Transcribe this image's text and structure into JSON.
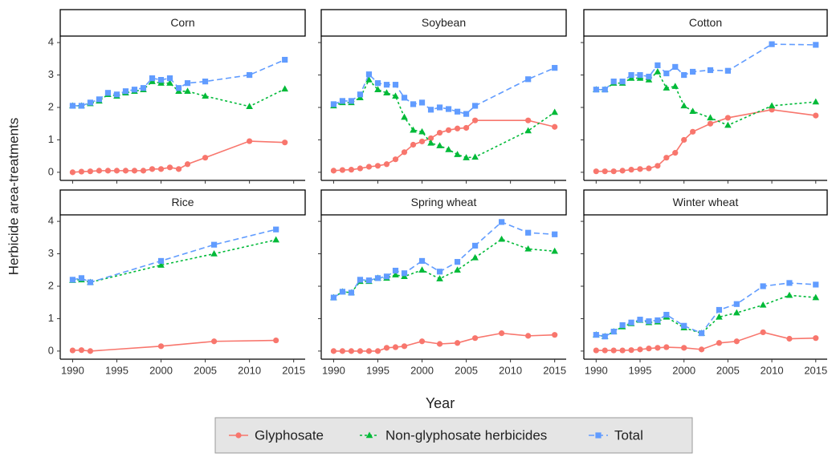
{
  "chart_data": {
    "type": "line",
    "xlabel": "Year",
    "ylabel": "Herbicide area-treatments",
    "xlim": [
      1988.6,
      2016.3
    ],
    "xticks": [
      1990,
      1995,
      2000,
      2005,
      2010,
      2015
    ],
    "ylim": [
      -0.25,
      4.2
    ],
    "yticks": [
      0,
      1,
      2,
      3,
      4
    ],
    "grid": false,
    "legend": "bottom",
    "series": [
      {
        "name": "Glyphosate",
        "color": "#F8766D",
        "dash": "solid",
        "marker": "circle"
      },
      {
        "name": "Non-glyphosate herbicides",
        "color": "#00BA38",
        "dash": "dotted",
        "marker": "triangle"
      },
      {
        "name": "Total",
        "color": "#619CFF",
        "dash": "dashed",
        "marker": "square"
      }
    ],
    "panels": [
      {
        "title": "Corn",
        "x": [
          1990,
          1991,
          1992,
          1993,
          1994,
          1995,
          1996,
          1997,
          1998,
          1999,
          2000,
          2001,
          2002,
          2003,
          2005,
          2010,
          2014
        ],
        "series": [
          {
            "values": [
              0,
              0.02,
              0.03,
              0.05,
              0.05,
              0.05,
              0.05,
              0.05,
              0.05,
              0.1,
              0.1,
              0.15,
              0.1,
              0.25,
              0.45,
              0.96,
              0.92
            ]
          },
          {
            "values": [
              2.05,
              2.05,
              2.12,
              2.2,
              2.4,
              2.35,
              2.45,
              2.5,
              2.55,
              2.8,
              2.75,
              2.75,
              2.5,
              2.5,
              2.35,
              2.03,
              2.57
            ]
          },
          {
            "values": [
              2.05,
              2.05,
              2.15,
              2.25,
              2.45,
              2.4,
              2.5,
              2.55,
              2.6,
              2.9,
              2.85,
              2.9,
              2.6,
              2.75,
              2.8,
              3.0,
              3.47
            ]
          }
        ]
      },
      {
        "title": "Soybean",
        "x": [
          1990,
          1991,
          1992,
          1993,
          1994,
          1995,
          1996,
          1997,
          1998,
          1999,
          2000,
          2001,
          2002,
          2003,
          2004,
          2005,
          2006,
          2012,
          2015
        ],
        "series": [
          {
            "values": [
              0.05,
              0.07,
              0.08,
              0.12,
              0.17,
              0.2,
              0.25,
              0.4,
              0.62,
              0.85,
              0.95,
              1.05,
              1.22,
              1.3,
              1.35,
              1.37,
              1.6,
              1.6,
              1.4
            ]
          },
          {
            "values": [
              2.05,
              2.15,
              2.15,
              2.3,
              2.85,
              2.55,
              2.45,
              2.35,
              1.7,
              1.3,
              1.25,
              0.9,
              0.82,
              0.7,
              0.55,
              0.45,
              0.47,
              1.28,
              1.85
            ]
          },
          {
            "values": [
              2.1,
              2.2,
              2.2,
              2.4,
              3.02,
              2.75,
              2.7,
              2.7,
              2.3,
              2.1,
              2.15,
              1.93,
              2.0,
              1.95,
              1.87,
              1.8,
              2.05,
              2.87,
              3.22
            ]
          }
        ]
      },
      {
        "title": "Cotton",
        "x": [
          1990,
          1991,
          1992,
          1993,
          1994,
          1995,
          1996,
          1997,
          1998,
          1999,
          2000,
          2001,
          2003,
          2005,
          2010,
          2015
        ],
        "series": [
          {
            "values": [
              0.03,
              0.03,
              0.03,
              0.05,
              0.08,
              0.1,
              0.12,
              0.2,
              0.45,
              0.6,
              1.0,
              1.25,
              1.5,
              1.68,
              1.93,
              1.75
            ]
          },
          {
            "values": [
              2.55,
              2.55,
              2.75,
              2.75,
              2.9,
              2.9,
              2.85,
              3.1,
              2.6,
              2.65,
              2.05,
              1.88,
              1.68,
              1.45,
              2.05,
              2.17
            ]
          },
          {
            "values": [
              2.55,
              2.55,
              2.8,
              2.8,
              3.0,
              3.0,
              2.95,
              3.3,
              3.05,
              3.25,
              3.0,
              3.1,
              3.15,
              3.13,
              3.95,
              3.93
            ]
          }
        ]
      },
      {
        "title": "Rice",
        "x": [
          1990,
          1991,
          1992,
          2000,
          2006,
          2013
        ],
        "series": [
          {
            "values": [
              0.02,
              0.03,
              0,
              0.15,
              0.3,
              0.33
            ]
          },
          {
            "values": [
              2.18,
              2.2,
              2.12,
              2.65,
              3.0,
              3.43
            ]
          },
          {
            "values": [
              2.2,
              2.25,
              2.12,
              2.78,
              3.28,
              3.75
            ]
          }
        ]
      },
      {
        "title": "Spring wheat",
        "x": [
          1990,
          1991,
          1992,
          1993,
          1994,
          1995,
          1996,
          1997,
          1998,
          2000,
          2002,
          2004,
          2006,
          2009,
          2012,
          2015
        ],
        "series": [
          {
            "values": [
              0,
              0,
              0,
              0,
              0,
              0,
              0.1,
              0.12,
              0.15,
              0.3,
              0.22,
              0.25,
              0.4,
              0.55,
              0.47,
              0.5
            ]
          },
          {
            "values": [
              1.65,
              1.83,
              1.8,
              2.15,
              2.15,
              2.25,
              2.25,
              2.35,
              2.3,
              2.5,
              2.23,
              2.5,
              2.88,
              3.45,
              3.15,
              3.08
            ]
          },
          {
            "values": [
              1.65,
              1.83,
              1.8,
              2.2,
              2.18,
              2.25,
              2.3,
              2.48,
              2.4,
              2.78,
              2.45,
              2.75,
              3.25,
              3.98,
              3.65,
              3.6
            ]
          }
        ]
      },
      {
        "title": "Winter wheat",
        "x": [
          1990,
          1991,
          1992,
          1993,
          1994,
          1995,
          1996,
          1997,
          1998,
          2000,
          2002,
          2004,
          2006,
          2009,
          2012,
          2015
        ],
        "series": [
          {
            "values": [
              0.02,
              0.02,
              0.02,
              0.02,
              0.03,
              0.05,
              0.08,
              0.1,
              0.12,
              0.1,
              0.05,
              0.25,
              0.3,
              0.58,
              0.38,
              0.4
            ]
          },
          {
            "values": [
              0.5,
              0.45,
              0.6,
              0.75,
              0.85,
              0.95,
              0.88,
              0.9,
              1.05,
              0.72,
              0.55,
              1.05,
              1.18,
              1.42,
              1.72,
              1.65
            ]
          },
          {
            "values": [
              0.5,
              0.45,
              0.6,
              0.8,
              0.88,
              0.97,
              0.92,
              0.95,
              1.12,
              0.78,
              0.55,
              1.27,
              1.45,
              2.0,
              2.1,
              2.05
            ]
          }
        ]
      }
    ]
  }
}
